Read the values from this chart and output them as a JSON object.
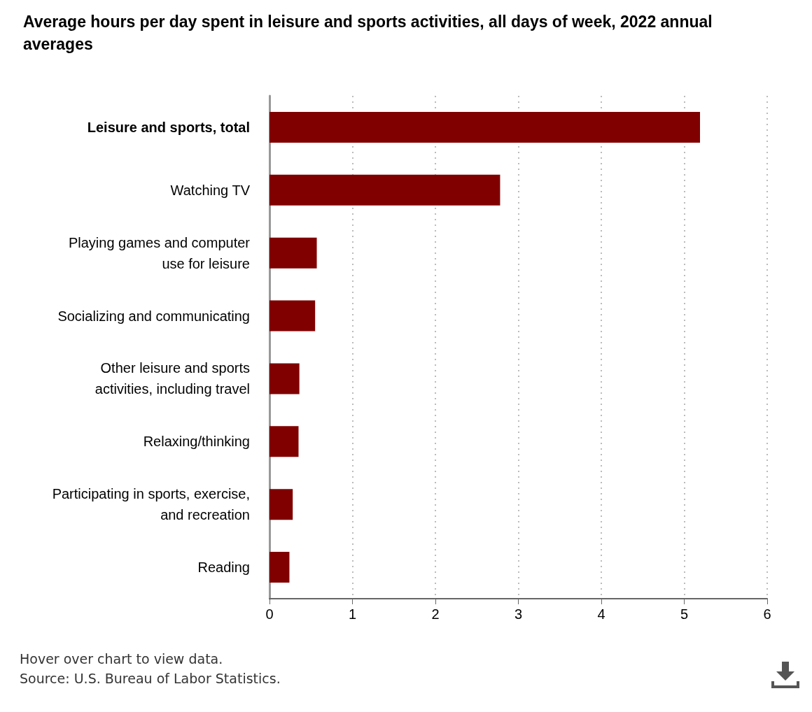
{
  "chart_data": {
    "type": "bar",
    "orientation": "horizontal",
    "title": "Average hours per day spent in leisure and sports activities, all days of week, 2022 annual averages",
    "categories": [
      "Leisure and sports, total",
      "Watching TV",
      "Playing games and computer use for leisure",
      "Socializing and communicating",
      "Other leisure and sports activities, including travel",
      "Relaxing/thinking",
      "Participating in sports, exercise, and recreation",
      "Reading"
    ],
    "values": [
      5.19,
      2.78,
      0.57,
      0.55,
      0.36,
      0.35,
      0.28,
      0.24
    ],
    "color": "#800000",
    "xlim": [
      0,
      6
    ],
    "xticks": [
      0,
      1,
      2,
      3,
      4,
      5,
      6
    ],
    "grid": "x",
    "annotations": [
      "Hover over chart to view data.",
      "Source: U.S. Bureau of Labor Statistics."
    ]
  }
}
